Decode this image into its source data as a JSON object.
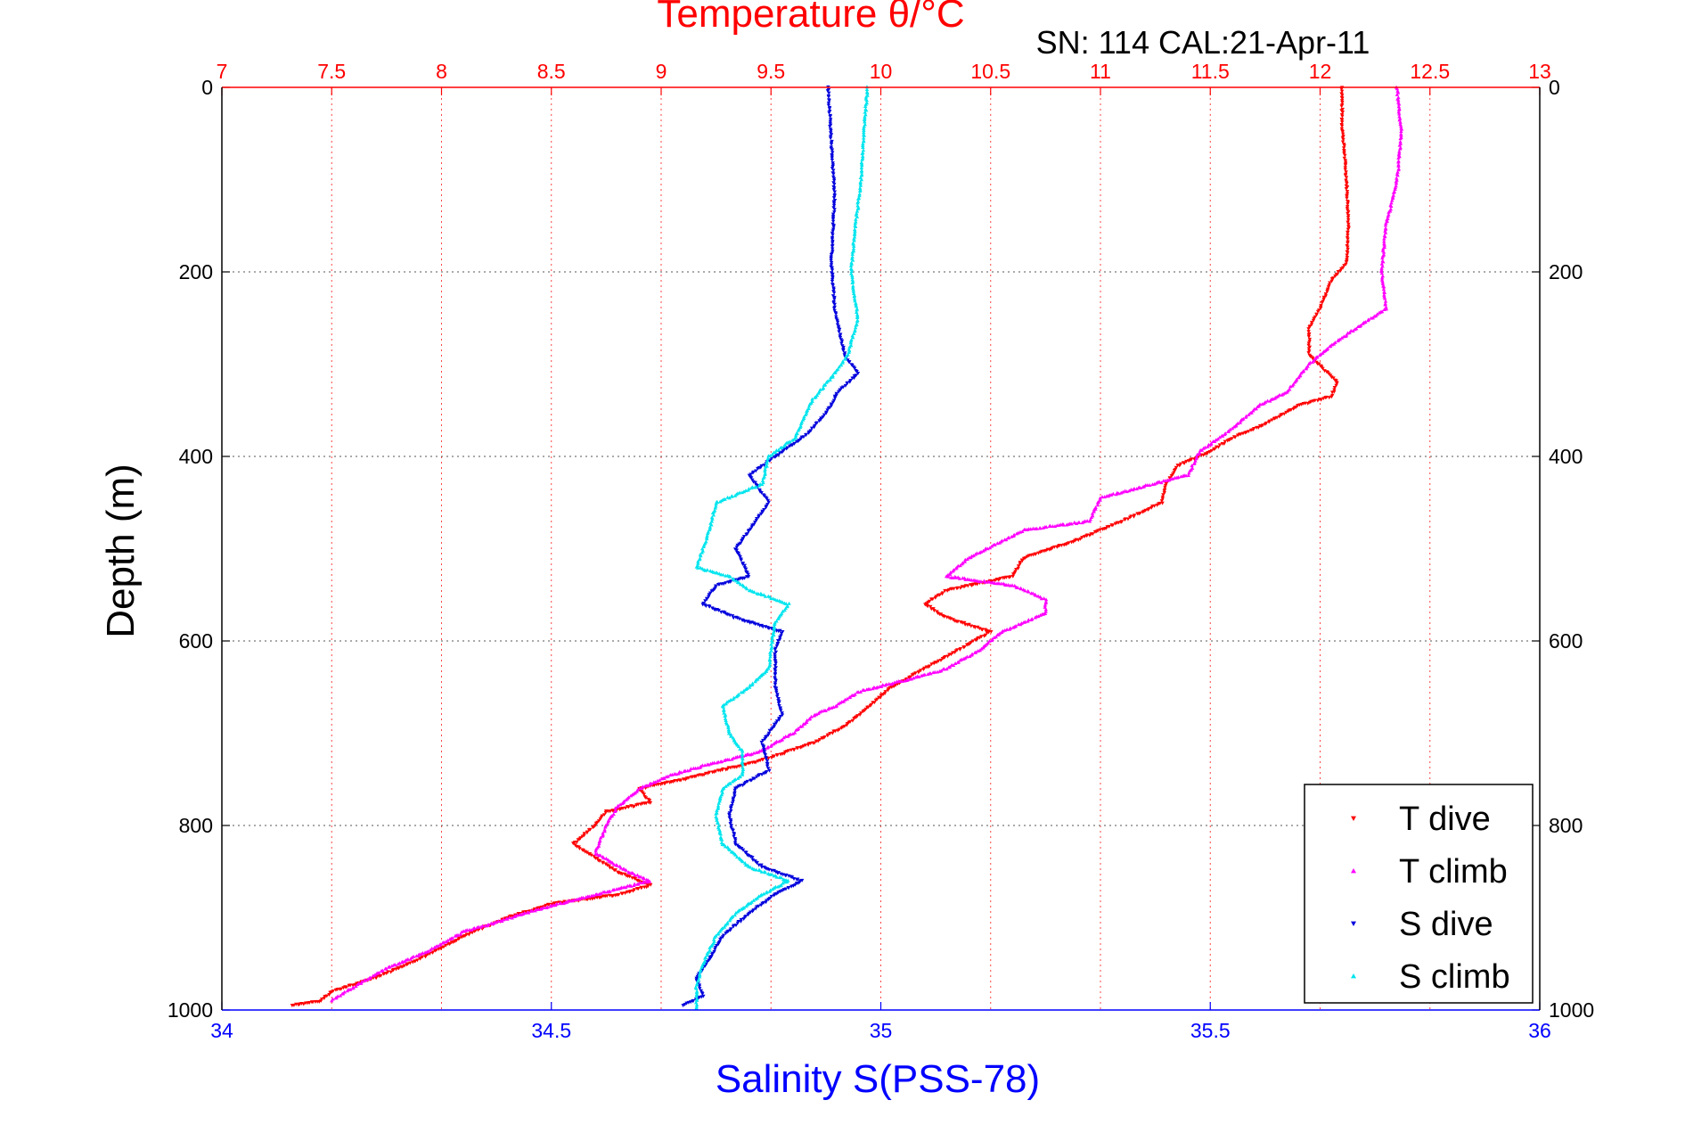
{
  "chart_data": {
    "type": "scatter",
    "title_top": "Temperature θ/°C",
    "subtitle": "SN: 114  CAL:21-Apr-11",
    "xlabel_bottom": "Salinity S(PSS-78)",
    "ylabel": "Depth (m)",
    "colors": {
      "top_axis": "#ff0000",
      "bottom_axis": "#0000ff",
      "t_dive": "#ff0000",
      "t_climb": "#ff00ff",
      "s_dive": "#0000dd",
      "s_climb": "#00e5ee"
    },
    "top_axis": {
      "range": [
        7,
        13
      ],
      "ticks": [
        "7",
        "7.5",
        "8",
        "8.5",
        "9",
        "9.5",
        "10",
        "10.5",
        "11",
        "11.5",
        "12",
        "12.5",
        "13"
      ]
    },
    "bottom_axis": {
      "range": [
        34,
        36
      ],
      "ticks": [
        "34",
        "34.5",
        "35",
        "35.5",
        "36"
      ]
    },
    "y_axis": {
      "range": [
        0,
        1000
      ],
      "reversed": true,
      "ticks": [
        "0",
        "200",
        "400",
        "600",
        "800",
        "1000"
      ]
    },
    "grid": true,
    "legend_position": "bottom-right",
    "series": [
      {
        "name": "T dive",
        "axis": "temperature",
        "marker": "triangle-down",
        "points": [
          [
            12.1,
            0
          ],
          [
            12.1,
            40
          ],
          [
            12.12,
            100
          ],
          [
            12.13,
            150
          ],
          [
            12.12,
            190
          ],
          [
            12.05,
            210
          ],
          [
            12.0,
            240
          ],
          [
            11.95,
            260
          ],
          [
            11.95,
            290
          ],
          [
            12.08,
            320
          ],
          [
            12.05,
            335
          ],
          [
            11.9,
            345
          ],
          [
            11.75,
            365
          ],
          [
            11.6,
            380
          ],
          [
            11.5,
            395
          ],
          [
            11.35,
            410
          ],
          [
            11.3,
            430
          ],
          [
            11.28,
            450
          ],
          [
            11.1,
            470
          ],
          [
            10.9,
            490
          ],
          [
            10.65,
            510
          ],
          [
            10.6,
            530
          ],
          [
            10.3,
            545
          ],
          [
            10.2,
            560
          ],
          [
            10.3,
            575
          ],
          [
            10.5,
            590
          ],
          [
            10.35,
            610
          ],
          [
            10.2,
            630
          ],
          [
            10.05,
            650
          ],
          [
            9.95,
            670
          ],
          [
            9.85,
            690
          ],
          [
            9.7,
            710
          ],
          [
            9.45,
            730
          ],
          [
            9.1,
            750
          ],
          [
            8.9,
            760
          ],
          [
            8.95,
            775
          ],
          [
            8.75,
            785
          ],
          [
            8.7,
            800
          ],
          [
            8.6,
            820
          ],
          [
            8.7,
            835
          ],
          [
            8.8,
            850
          ],
          [
            8.95,
            865
          ],
          [
            8.8,
            875
          ],
          [
            8.5,
            885
          ],
          [
            8.3,
            900
          ],
          [
            8.1,
            920
          ],
          [
            7.9,
            945
          ],
          [
            7.7,
            965
          ],
          [
            7.5,
            980
          ],
          [
            7.45,
            990
          ],
          [
            7.32,
            995
          ]
        ]
      },
      {
        "name": "T climb",
        "axis": "temperature",
        "marker": "triangle-up",
        "points": [
          [
            12.35,
            0
          ],
          [
            12.37,
            50
          ],
          [
            12.35,
            100
          ],
          [
            12.3,
            150
          ],
          [
            12.28,
            200
          ],
          [
            12.3,
            240
          ],
          [
            12.2,
            255
          ],
          [
            12.05,
            280
          ],
          [
            11.95,
            300
          ],
          [
            11.85,
            330
          ],
          [
            11.72,
            345
          ],
          [
            11.6,
            370
          ],
          [
            11.45,
            395
          ],
          [
            11.4,
            420
          ],
          [
            11.0,
            445
          ],
          [
            10.95,
            470
          ],
          [
            10.65,
            480
          ],
          [
            10.4,
            510
          ],
          [
            10.3,
            530
          ],
          [
            10.6,
            540
          ],
          [
            10.75,
            555
          ],
          [
            10.75,
            570
          ],
          [
            10.55,
            590
          ],
          [
            10.45,
            610
          ],
          [
            10.3,
            630
          ],
          [
            10.15,
            640
          ],
          [
            9.9,
            655
          ],
          [
            9.8,
            670
          ],
          [
            9.7,
            680
          ],
          [
            9.6,
            700
          ],
          [
            9.45,
            720
          ],
          [
            9.2,
            735
          ],
          [
            9.05,
            745
          ],
          [
            8.9,
            760
          ],
          [
            8.8,
            780
          ],
          [
            8.75,
            800
          ],
          [
            8.7,
            830
          ],
          [
            8.85,
            850
          ],
          [
            8.95,
            860
          ],
          [
            8.7,
            875
          ],
          [
            8.45,
            890
          ],
          [
            8.25,
            905
          ],
          [
            8.1,
            915
          ],
          [
            7.95,
            935
          ],
          [
            7.75,
            955
          ],
          [
            7.6,
            975
          ],
          [
            7.5,
            990
          ]
        ]
      },
      {
        "name": "S dive",
        "axis": "salinity",
        "marker": "triangle-down",
        "points": [
          [
            34.92,
            0
          ],
          [
            34.925,
            60
          ],
          [
            34.93,
            120
          ],
          [
            34.925,
            190
          ],
          [
            34.93,
            240
          ],
          [
            34.945,
            290
          ],
          [
            34.965,
            310
          ],
          [
            34.935,
            330
          ],
          [
            34.92,
            350
          ],
          [
            34.89,
            375
          ],
          [
            34.84,
            400
          ],
          [
            34.8,
            420
          ],
          [
            34.83,
            450
          ],
          [
            34.8,
            480
          ],
          [
            34.78,
            500
          ],
          [
            34.8,
            530
          ],
          [
            34.75,
            540
          ],
          [
            34.73,
            560
          ],
          [
            34.78,
            575
          ],
          [
            34.85,
            590
          ],
          [
            34.84,
            610
          ],
          [
            34.84,
            650
          ],
          [
            34.85,
            680
          ],
          [
            34.82,
            710
          ],
          [
            34.83,
            740
          ],
          [
            34.78,
            760
          ],
          [
            34.77,
            790
          ],
          [
            34.78,
            820
          ],
          [
            34.82,
            845
          ],
          [
            34.88,
            860
          ],
          [
            34.84,
            875
          ],
          [
            34.8,
            895
          ],
          [
            34.76,
            920
          ],
          [
            34.74,
            945
          ],
          [
            34.72,
            965
          ],
          [
            34.73,
            985
          ],
          [
            34.7,
            995
          ]
        ]
      },
      {
        "name": "S climb",
        "axis": "salinity",
        "marker": "triangle-up",
        "points": [
          [
            34.98,
            0
          ],
          [
            34.975,
            40
          ],
          [
            34.97,
            100
          ],
          [
            34.96,
            160
          ],
          [
            34.955,
            200
          ],
          [
            34.965,
            250
          ],
          [
            34.95,
            290
          ],
          [
            34.93,
            310
          ],
          [
            34.895,
            340
          ],
          [
            34.87,
            380
          ],
          [
            34.83,
            400
          ],
          [
            34.82,
            430
          ],
          [
            34.75,
            450
          ],
          [
            34.74,
            480
          ],
          [
            34.73,
            500
          ],
          [
            34.72,
            520
          ],
          [
            34.77,
            530
          ],
          [
            34.8,
            545
          ],
          [
            34.86,
            560
          ],
          [
            34.84,
            580
          ],
          [
            34.835,
            600
          ],
          [
            34.83,
            630
          ],
          [
            34.8,
            650
          ],
          [
            34.76,
            670
          ],
          [
            34.77,
            700
          ],
          [
            34.79,
            720
          ],
          [
            34.79,
            745
          ],
          [
            34.76,
            760
          ],
          [
            34.75,
            790
          ],
          [
            34.76,
            820
          ],
          [
            34.8,
            845
          ],
          [
            34.86,
            860
          ],
          [
            34.82,
            875
          ],
          [
            34.78,
            895
          ],
          [
            34.75,
            920
          ],
          [
            34.73,
            950
          ],
          [
            34.72,
            975
          ],
          [
            34.72,
            998
          ]
        ]
      }
    ]
  }
}
